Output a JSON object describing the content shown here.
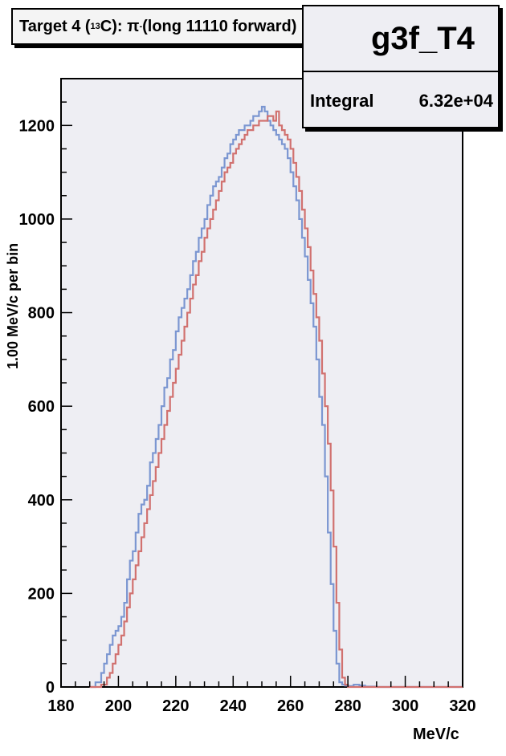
{
  "chart_data": {
    "type": "line",
    "title": {
      "prefix": "Target 4 (",
      "isotope_mass": "13",
      "element_suffix": "C): π",
      "charge": "-",
      "rest": " (long 11110 forward)"
    },
    "stats": {
      "name": "g3f_T4",
      "integral_label": "Integral",
      "integral_value": "6.32e+04"
    },
    "xlabel": "MeV/c",
    "ylabel": "1.00 MeV/c per bin",
    "xlim": [
      180,
      320
    ],
    "ylim": [
      0,
      1300
    ],
    "x_ticks": [
      180,
      200,
      220,
      240,
      260,
      280,
      300,
      320
    ],
    "y_ticks": [
      0,
      200,
      400,
      600,
      800,
      1000,
      1200
    ],
    "grid": false,
    "series": [
      {
        "color": "#7b96d1",
        "x": [
          190,
          192,
          194,
          195,
          196,
          197,
          198,
          199,
          200,
          201,
          202,
          203,
          204,
          205,
          206,
          207,
          208,
          209,
          210,
          211,
          212,
          213,
          214,
          215,
          216,
          217,
          218,
          219,
          220,
          221,
          222,
          223,
          224,
          225,
          226,
          227,
          228,
          229,
          230,
          231,
          232,
          233,
          234,
          235,
          236,
          237,
          238,
          239,
          240,
          241,
          242,
          243,
          244,
          245,
          246,
          247,
          248,
          249,
          250,
          251,
          252,
          253,
          254,
          255,
          256,
          257,
          258,
          259,
          260,
          261,
          262,
          263,
          264,
          265,
          266,
          267,
          268,
          269,
          270,
          271,
          272,
          273,
          274,
          275,
          276,
          277,
          278,
          279,
          280,
          282,
          284,
          286,
          290,
          300,
          320
        ],
        "y": [
          0,
          10,
          30,
          50,
          70,
          90,
          110,
          120,
          130,
          150,
          180,
          230,
          270,
          290,
          330,
          370,
          390,
          400,
          430,
          480,
          500,
          530,
          560,
          600,
          640,
          660,
          700,
          720,
          760,
          790,
          810,
          830,
          850,
          880,
          910,
          930,
          960,
          980,
          1000,
          1030,
          1050,
          1070,
          1080,
          1090,
          1110,
          1130,
          1140,
          1160,
          1170,
          1180,
          1190,
          1190,
          1200,
          1200,
          1210,
          1220,
          1220,
          1230,
          1240,
          1230,
          1210,
          1200,
          1190,
          1180,
          1170,
          1160,
          1150,
          1130,
          1100,
          1070,
          1040,
          1000,
          960,
          920,
          870,
          820,
          770,
          700,
          620,
          560,
          450,
          330,
          220,
          120,
          50,
          10,
          5,
          3,
          2,
          5,
          3,
          1,
          0,
          0,
          0
        ]
      },
      {
        "color": "#d1716f",
        "x": [
          190,
          194,
          196,
          197,
          198,
          199,
          200,
          201,
          202,
          203,
          204,
          205,
          206,
          207,
          208,
          209,
          210,
          211,
          212,
          213,
          214,
          215,
          216,
          217,
          218,
          219,
          220,
          221,
          222,
          223,
          224,
          225,
          226,
          227,
          228,
          229,
          230,
          231,
          232,
          233,
          234,
          235,
          236,
          237,
          238,
          239,
          240,
          241,
          242,
          243,
          244,
          245,
          246,
          247,
          248,
          249,
          250,
          251,
          252,
          253,
          254,
          255,
          256,
          257,
          258,
          259,
          260,
          261,
          262,
          263,
          264,
          265,
          266,
          267,
          268,
          269,
          270,
          271,
          272,
          273,
          274,
          275,
          276,
          277,
          278,
          279,
          280,
          290,
          300,
          320
        ],
        "y": [
          0,
          5,
          20,
          30,
          50,
          70,
          90,
          110,
          140,
          170,
          200,
          230,
          260,
          290,
          320,
          350,
          380,
          410,
          440,
          470,
          500,
          530,
          560,
          590,
          620,
          650,
          680,
          710,
          740,
          770,
          800,
          830,
          860,
          880,
          910,
          930,
          960,
          980,
          1000,
          1020,
          1040,
          1060,
          1080,
          1100,
          1110,
          1120,
          1140,
          1150,
          1160,
          1170,
          1180,
          1190,
          1190,
          1200,
          1200,
          1210,
          1210,
          1210,
          1220,
          1220,
          1210,
          1230,
          1200,
          1190,
          1180,
          1170,
          1150,
          1120,
          1090,
          1060,
          1020,
          980,
          940,
          890,
          840,
          790,
          740,
          670,
          600,
          520,
          420,
          300,
          180,
          80,
          20,
          5,
          0,
          0,
          0,
          0
        ]
      }
    ]
  }
}
